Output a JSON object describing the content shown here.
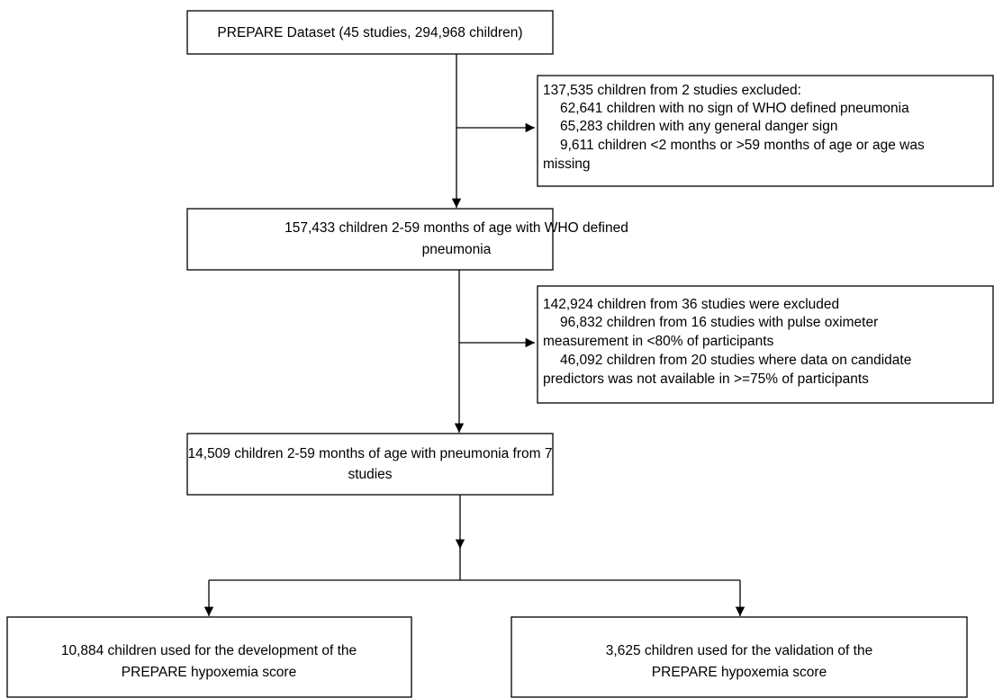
{
  "nodes": [
    {
      "lines": [
        "PREPARE Dataset (45 studies, 294,968 children)"
      ]
    },
    {
      "lines": [
        "137,535 children from 2 studies excluded:",
        "62,641 children with no sign of WHO defined pneumonia",
        "65,283 children with any general danger sign",
        "9,611 children <2 months or >59 months of age or age was",
        "missing"
      ]
    },
    {
      "lines": [
        "157,433 children 2-59 months of age with WHO defined",
        "pneumonia"
      ]
    },
    {
      "lines": [
        "142,924 children from 36 studies were excluded",
        "96,832 children from 16 studies with pulse oximeter",
        "measurement in <80% of participants",
        "46,092 children from 20 studies where data on candidate",
        "predictors was not available in >=75% of participants"
      ]
    },
    {
      "lines": [
        "14,509 children 2-59 months of age with pneumonia from 7",
        "studies"
      ]
    },
    {
      "lines": [
        "10,884 children used for the development of the",
        "PREPARE hypoxemia score"
      ]
    },
    {
      "lines": [
        "3,625 children used for the validation of the",
        "PREPARE hypoxemia score"
      ]
    }
  ]
}
